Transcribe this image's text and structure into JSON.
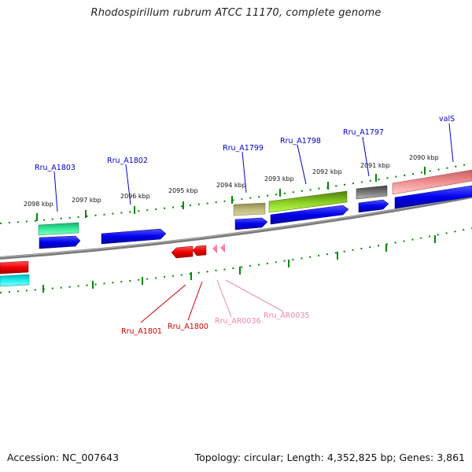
{
  "title": "Rhodospirillum rubrum ATCC 11170, complete genome",
  "footer": {
    "accession": "Accession: NC_007643",
    "summary": "Topology: circular; Length: 4,352,825 bp; Genes: 3,861"
  },
  "scale_labels": [
    "2098 kbp",
    "2097 kbp",
    "2096 kbp",
    "2095 kbp",
    "2094 kbp",
    "2093 kbp",
    "2092 kbp",
    "2091 kbp",
    "2090 kbp"
  ],
  "gene_labels": {
    "top": [
      "Rru_A1803",
      "Rru_A1802",
      "Rru_A1799",
      "Rru_A1798",
      "Rru_A1797",
      "valS"
    ],
    "bottom": [
      "Rru_A1801",
      "Rru_A1800",
      "Rru_AR0036",
      "Rru_AR0035"
    ]
  },
  "colors": {
    "protein_label": "#0000cc",
    "rna_label": "#cc0000",
    "trna_label": "#ee88aa",
    "backbone": "#808080",
    "tick": "#007700",
    "cds": "#0000ee"
  }
}
